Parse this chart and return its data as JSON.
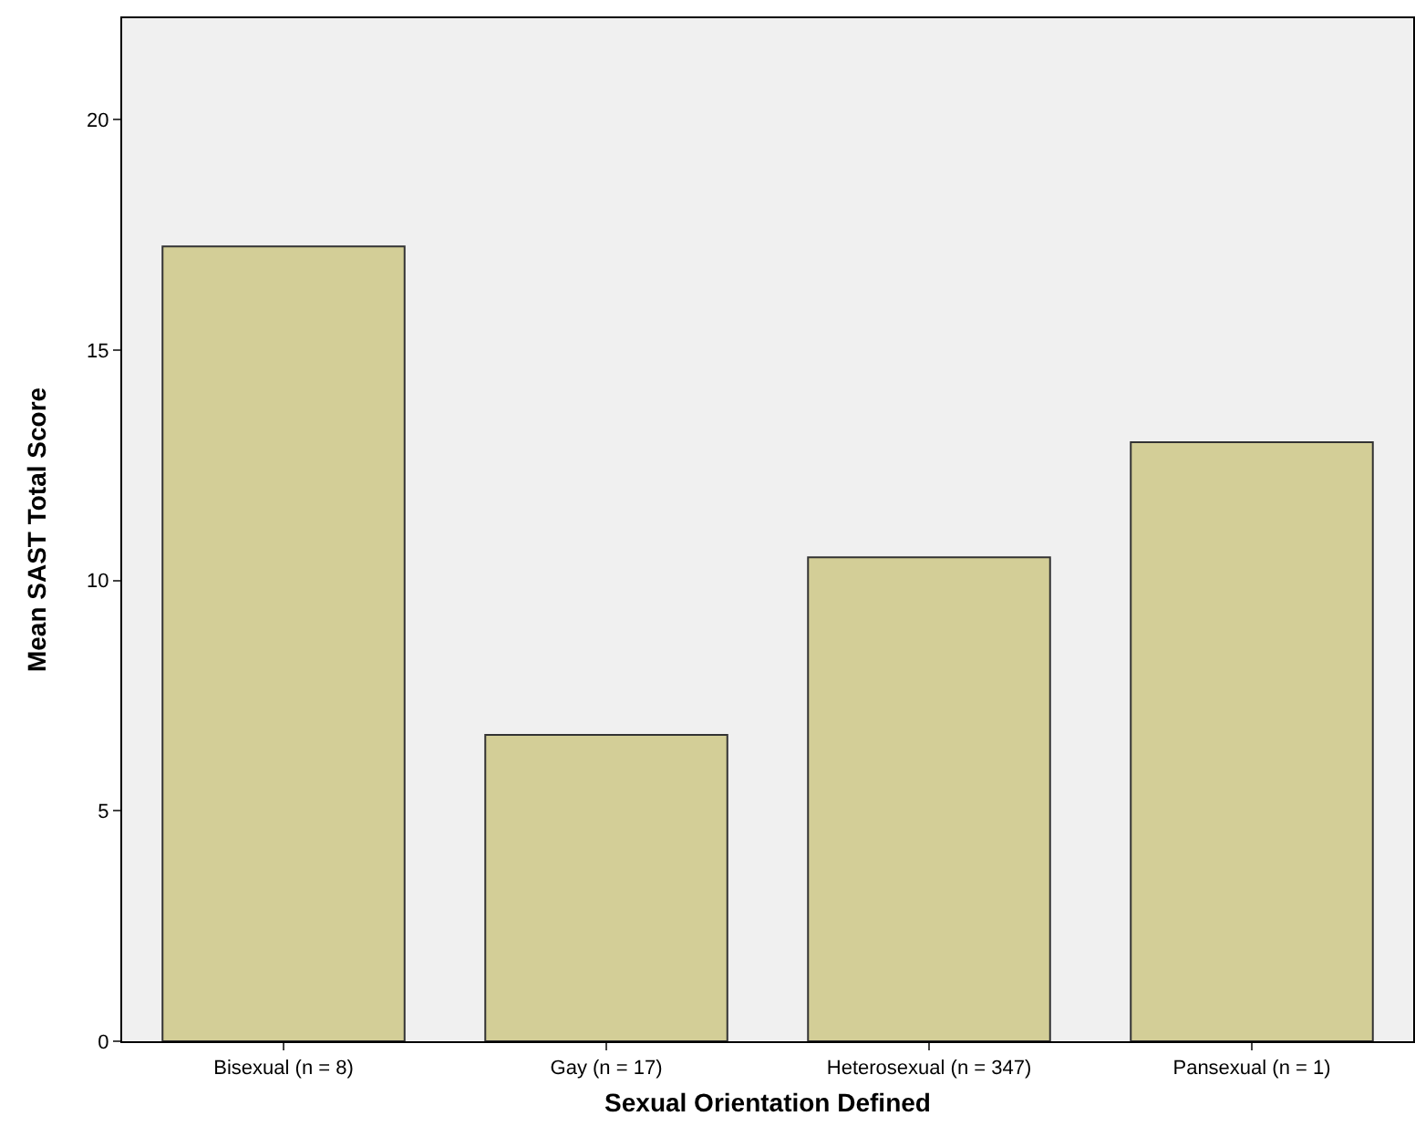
{
  "chart_data": {
    "type": "bar",
    "xlabel": "Sexual Orientation Defined",
    "ylabel": "Mean SAST Total Score",
    "categories": [
      "Bisexual (n = 8)",
      "Gay (n = 17)",
      "Heterosexual (n = 347)",
      "Pansexual (n = 1)"
    ],
    "values": [
      17.25,
      6.65,
      10.5,
      13.0
    ],
    "color": "#d3ce97",
    "ylim": [
      0,
      22.2
    ],
    "yticks": [
      0,
      5,
      10,
      15,
      20
    ],
    "grid": false,
    "legend": false
  }
}
